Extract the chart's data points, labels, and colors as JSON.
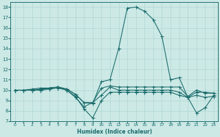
{
  "xlabel": "Humidex (Indice chaleur)",
  "xlim": [
    -0.5,
    23.5
  ],
  "ylim": [
    7,
    18.5
  ],
  "xticks": [
    0,
    1,
    2,
    3,
    4,
    5,
    6,
    7,
    8,
    9,
    10,
    11,
    12,
    13,
    14,
    15,
    16,
    17,
    18,
    19,
    20,
    21,
    22,
    23
  ],
  "yticks": [
    7,
    8,
    9,
    10,
    11,
    12,
    13,
    14,
    15,
    16,
    17,
    18
  ],
  "background_color": "#cce9e6",
  "line_color": "#1a6b6b",
  "grid_color": "#b0d5d2",
  "line1_x": [
    0,
    1,
    2,
    3,
    4,
    5,
    6,
    7,
    8,
    9,
    10,
    11,
    12,
    13,
    14,
    15,
    16,
    17,
    18,
    19,
    20,
    21,
    22,
    23
  ],
  "line1_y": [
    10,
    10,
    10.1,
    10.2,
    10.2,
    10.3,
    10.1,
    9.6,
    8.8,
    8.7,
    10.8,
    11.0,
    14.0,
    17.9,
    18.0,
    17.6,
    16.8,
    15.2,
    11.0,
    11.2,
    9.3,
    9.8,
    9.8,
    9.7
  ],
  "line2_x": [
    0,
    1,
    2,
    3,
    4,
    5,
    6,
    7,
    8,
    9,
    10,
    11,
    12,
    13,
    14,
    15,
    16,
    17,
    18,
    19,
    20,
    21,
    22,
    23
  ],
  "line2_y": [
    10,
    10,
    10,
    10.1,
    10.2,
    10.3,
    10.1,
    9.6,
    8.8,
    8.8,
    10.2,
    10.4,
    10.3,
    10.3,
    10.3,
    10.3,
    10.3,
    10.3,
    10.3,
    10.3,
    9.4,
    10.0,
    9.7,
    9.7
  ],
  "line3_x": [
    0,
    1,
    2,
    3,
    4,
    5,
    6,
    7,
    8,
    9,
    10,
    11,
    12,
    13,
    14,
    15,
    16,
    17,
    18,
    19,
    20,
    21,
    22,
    23
  ],
  "line3_y": [
    10,
    10,
    10,
    10.0,
    10.1,
    10.2,
    10.0,
    9.4,
    8.2,
    7.3,
    9.0,
    9.8,
    9.8,
    9.8,
    9.8,
    9.8,
    9.8,
    9.8,
    9.8,
    9.5,
    9.3,
    7.8,
    8.3,
    9.5
  ],
  "line4_x": [
    0,
    1,
    2,
    3,
    4,
    5,
    6,
    7,
    8,
    9,
    10,
    11,
    12,
    13,
    14,
    15,
    16,
    17,
    18,
    19,
    20,
    21,
    22,
    23
  ],
  "line4_y": [
    10,
    10,
    10.0,
    10.0,
    10.2,
    10.3,
    10.0,
    9.3,
    8.4,
    8.8,
    9.5,
    10.3,
    10.0,
    10.0,
    10.0,
    10.0,
    10.0,
    10.0,
    10.0,
    9.8,
    9.3,
    9.5,
    9.3,
    9.4
  ]
}
